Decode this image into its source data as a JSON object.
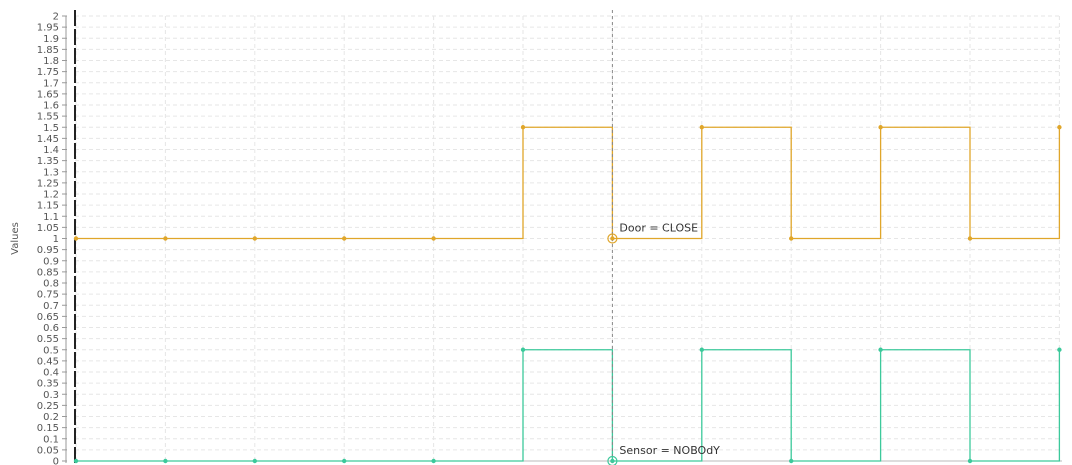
{
  "chart_data": {
    "type": "line",
    "step": true,
    "ylabel": "Values",
    "xlabel": "",
    "ylim": [
      0,
      2
    ],
    "y_tick_step": 0.05,
    "grid": true,
    "x": [
      0,
      1,
      2,
      3,
      4,
      5,
      6,
      7,
      8,
      9,
      10,
      11
    ],
    "series": [
      {
        "name": "Door",
        "color": "#e0a62a",
        "values": [
          1,
          1,
          1,
          1,
          1,
          1.5,
          1,
          1.5,
          1,
          1.5,
          1,
          1.5
        ]
      },
      {
        "name": "Sensor",
        "color": "#3cc99b",
        "values": [
          0,
          0,
          0,
          0,
          0,
          0.5,
          0,
          0.5,
          0,
          0.5,
          0,
          0.5
        ]
      }
    ],
    "cursor": {
      "x": 6,
      "labels": [
        "Door = CLOSE",
        "Sensor = NOBOdY"
      ]
    }
  }
}
